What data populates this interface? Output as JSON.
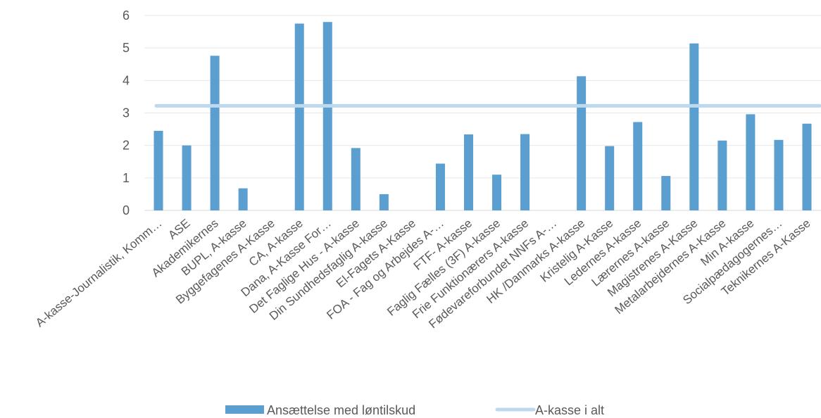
{
  "chart_data": {
    "type": "bar",
    "categories": [
      "A-kasse-Journalistik, Komm…",
      "ASE",
      "Akademikernes",
      "BUPL, A-kasse",
      "Byggefagenes A-Kasse",
      "CA, A-kasse",
      "Dana, A-Kasse For…",
      "Det Faglige Hus - A-kasse",
      "Din Sundhedsfaglig A-kasse",
      "El-Fagets A-Kasse",
      "FOA - Fag og Arbejdes A-…",
      "FTF- A-kasse",
      "Faglig Fælles (3F) A-kasse",
      "Frie Funktionærers A-kasse",
      "Fødevareforbundet NNFs A-…",
      "HK /Danmarks A-kasse",
      "Kristelig A-Kasse",
      "Ledernes A-kasse",
      "Lærernes A-kasse",
      "Magistrenes A-Kasse",
      "Metalarbejdernes A-Kasse",
      "Min A-kasse",
      "Socialpædagogernes…",
      "Teknikernes A-Kasse"
    ],
    "series": [
      {
        "name": "Ansættelse med løntilskud",
        "type": "bar",
        "color": "#5b9fd0",
        "values": [
          2.45,
          2.0,
          4.76,
          0.68,
          0.0,
          5.75,
          5.8,
          1.92,
          0.5,
          0.0,
          1.44,
          2.34,
          1.1,
          2.35,
          0.0,
          4.13,
          1.98,
          2.72,
          1.06,
          5.14,
          2.15,
          2.96,
          2.17,
          2.67
        ]
      },
      {
        "name": "A-kasse i alt",
        "type": "line",
        "color": "#bcd9ee",
        "value": 3.22
      }
    ],
    "ylim": [
      0,
      6
    ],
    "yticks": [
      0,
      1,
      2,
      3,
      4,
      5,
      6
    ],
    "grid": true,
    "legend": "bottom"
  }
}
